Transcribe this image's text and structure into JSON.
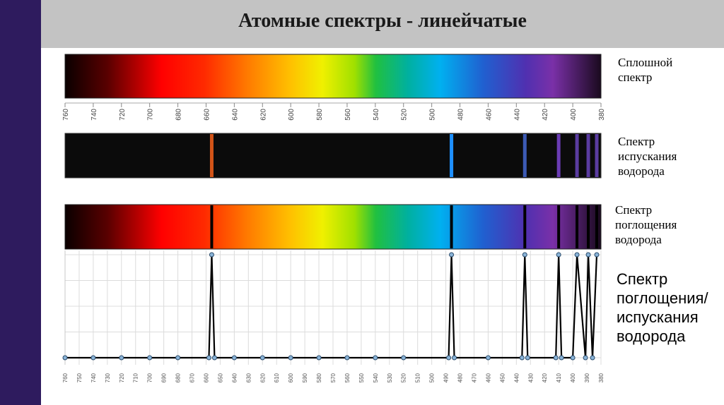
{
  "title": "Атомные спектры - линейчатые",
  "colors": {
    "sidebar": "#2e1b5e",
    "header": "#c3c3c3",
    "emission_bg": "#0b0b0b",
    "absorption_line": "#000000",
    "marker_fill": "#8ab4d8",
    "curve": "#000000"
  },
  "labels": {
    "continuous": [
      "Сплошной",
      "спектр"
    ],
    "emission": [
      "Спектр",
      "испускания",
      "водорода"
    ],
    "absorption": [
      "Спектр",
      "поглощения",
      "водорода"
    ],
    "combined": [
      "Спектр",
      "поглощения/",
      "испускания",
      "водорода"
    ]
  },
  "continuous_scale": {
    "ticks": [
      "760",
      "740",
      "720",
      "700",
      "680",
      "660",
      "640",
      "620",
      "600",
      "580",
      "560",
      "540",
      "520",
      "500",
      "480",
      "460",
      "440",
      "420",
      "400",
      "380"
    ]
  },
  "emission_lines": [
    {
      "nm": 656,
      "color": "#d35418"
    },
    {
      "nm": 486,
      "color": "#1e90ff"
    },
    {
      "nm": 434,
      "color": "#3c5ab4"
    },
    {
      "nm": 410,
      "color": "#6a3cb4"
    },
    {
      "nm": 397,
      "color": "#5a3ca0"
    },
    {
      "nm": 389,
      "color": "#5a3ca0"
    },
    {
      "nm": 383,
      "color": "#5a3ca0"
    }
  ],
  "chart_data": {
    "type": "line",
    "x_ticks": [
      "760",
      "750",
      "740",
      "730",
      "720",
      "710",
      "700",
      "690",
      "680",
      "670",
      "660",
      "650",
      "640",
      "630",
      "620",
      "610",
      "600",
      "590",
      "580",
      "570",
      "560",
      "550",
      "540",
      "530",
      "520",
      "510",
      "500",
      "490",
      "480",
      "470",
      "460",
      "450",
      "440",
      "430",
      "420",
      "410",
      "400",
      "390",
      "380"
    ],
    "points": [
      {
        "x": 760,
        "y": 0
      },
      {
        "x": 740,
        "y": 0
      },
      {
        "x": 720,
        "y": 0
      },
      {
        "x": 700,
        "y": 0
      },
      {
        "x": 680,
        "y": 0
      },
      {
        "x": 658,
        "y": 0
      },
      {
        "x": 656,
        "y": 1
      },
      {
        "x": 654,
        "y": 0
      },
      {
        "x": 640,
        "y": 0
      },
      {
        "x": 620,
        "y": 0
      },
      {
        "x": 600,
        "y": 0
      },
      {
        "x": 580,
        "y": 0
      },
      {
        "x": 560,
        "y": 0
      },
      {
        "x": 540,
        "y": 0
      },
      {
        "x": 520,
        "y": 0
      },
      {
        "x": 488,
        "y": 0
      },
      {
        "x": 486,
        "y": 1
      },
      {
        "x": 484,
        "y": 0
      },
      {
        "x": 460,
        "y": 0
      },
      {
        "x": 436,
        "y": 0
      },
      {
        "x": 434,
        "y": 1
      },
      {
        "x": 432,
        "y": 0
      },
      {
        "x": 412,
        "y": 0
      },
      {
        "x": 410,
        "y": 1
      },
      {
        "x": 408,
        "y": 0
      },
      {
        "x": 400,
        "y": 0
      },
      {
        "x": 397,
        "y": 1
      },
      {
        "x": 391,
        "y": 0
      },
      {
        "x": 389,
        "y": 1
      },
      {
        "x": 386,
        "y": 0
      },
      {
        "x": 383,
        "y": 1
      }
    ],
    "xlim": [
      760,
      380
    ],
    "ylim": [
      0,
      1.0
    ],
    "grid": true
  }
}
